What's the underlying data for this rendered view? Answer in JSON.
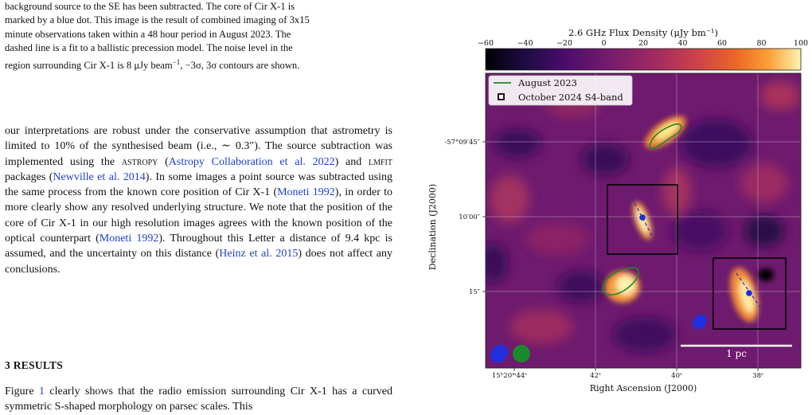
{
  "paper": {
    "caption": {
      "line1": "background source to the SE has been subtracted. The core of Cir X-1 is",
      "line2": "marked by a blue dot. This image is the result of combined imaging of 3x15",
      "line3": "minute observations taken within a 48 hour period in August 2023. The",
      "line4": "dashed line is a fit to a ballistic precession model. The noise level in the",
      "line5a": "region surrounding Cir X-1 is 8 ",
      "line5b": "μJy beam",
      "line5c": "−1",
      "line5d": ", −3σ, 3σ contours are shown."
    },
    "para1": {
      "t1": "our interpretations are robust under the conservative assumption that astrometry is limited to 10% of the synthesised beam (i.e., ∼ 0.3″). The source subtraction was implemented using the ",
      "astropy": "astropy",
      "t2": " (",
      "ref_astropy": "Astropy Collaboration et al. 2022",
      "t3": ") and ",
      "lmfit": "lmfit",
      "t4": " packages (",
      "ref_newville": "Newville et al. 2014",
      "t5": "). In some images a point source was subtracted using the same process from the known core position of Cir X-1 (",
      "ref_moneti1": "Moneti 1992",
      "t6": "), in order to more clearly show any resolved underlying structure. We note that the position of the core of Cir X-1 in our high resolution images agrees with the known position of the optical counterpart (",
      "ref_moneti2": "Moneti 1992",
      "t7": "). Throughout this Letter a distance of 9.4 kpc is assumed, and the uncertainty on this distance (",
      "ref_heinz": "Heinz et al. 2015",
      "t8": ") does not affect any conclusions."
    },
    "section_heading": "3 RESULTS",
    "para2": {
      "t1": "Figure ",
      "ref_fig": "1",
      "t2": " clearly shows that the radio emission surrounding Cir X-1 has a curved symmetric S-shaped morphology on parsec scales. This"
    }
  },
  "figure": {
    "colorbar_label": "2.6 GHz Flux Density (μJy bm⁻¹)",
    "colorbar_ticks": [
      "−60",
      "−40",
      "−20",
      "0",
      "20",
      "40",
      "60",
      "80",
      "100"
    ],
    "legend": [
      "August 2023",
      "October 2024 S4-band"
    ],
    "ylabel": "Declination (J2000)",
    "xlabel": "Right Ascension (J2000)",
    "yticks": [
      "-57°09′45″",
      "10′00″",
      "15″"
    ],
    "xticks": [
      "15ʰ20ᵐ44ˢ",
      "42ˢ",
      "40ˢ",
      "38ˢ"
    ],
    "scalebar": "1 pc",
    "colors": {
      "core": "#1230e0",
      "aug2023_contour": "#1f8a1f",
      "beam_green": "#1a8a2a",
      "beam_blue": "#2030e0"
    }
  }
}
